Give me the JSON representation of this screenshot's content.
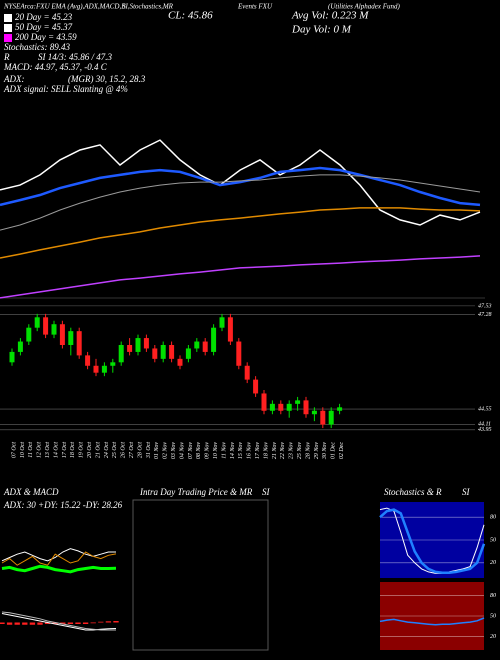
{
  "chart_data": [
    {
      "type": "line",
      "annotations": [
        "NYSEArca:FXU EMA (Avg),ADX,MACD,B",
        "SI,Stochastics,MR",
        "CL: 45.86",
        "Events FXU",
        "(Utilities Alphadex Fund)",
        "Stochastics: 89.43",
        "R",
        "SI 14/3: 45.86 / 47.3",
        "MACD: 44.97, 45.37, -0.4 C",
        "ADX:",
        "(MGR) 30, 15.2, 28.3",
        "ADX signal: SELL Slanting @ 4%",
        "Avg Vol: 0.223 M",
        "Day Vol: 0 M"
      ],
      "legend": [
        {
          "label": "20 Day = 45.23",
          "color": "#ffffff"
        },
        {
          "label": "50 Day = 45.37",
          "color": "#ffffff"
        },
        {
          "label": "200 Day = 43.59",
          "color": "#ff00ff"
        }
      ],
      "ylim": [
        42,
        49
      ],
      "series": [
        {
          "color": "#ffffff",
          "width": 1.5,
          "values": [
            44.57,
            44.68,
            44.92,
            45.27,
            45.5,
            45.62,
            45.15,
            45.5,
            45.73,
            45.27,
            44.92,
            44.68,
            45.03,
            45.27,
            44.92,
            45.15,
            45.5,
            45.15,
            44.68,
            44.1,
            43.87,
            43.75,
            43.98,
            43.87,
            44.05
          ]
        },
        {
          "color": "#1e5aff",
          "width": 2.5,
          "values": [
            44.22,
            44.33,
            44.45,
            44.61,
            44.73,
            44.85,
            44.92,
            44.99,
            45.03,
            44.99,
            44.85,
            44.68,
            44.75,
            44.85,
            44.99,
            45.03,
            45.08,
            45.03,
            44.92,
            44.8,
            44.68,
            44.52,
            44.38,
            44.26,
            44.22
          ]
        },
        {
          "color": "#9a9a9a",
          "width": 1,
          "values": [
            43.63,
            43.75,
            43.91,
            44.1,
            44.26,
            44.4,
            44.52,
            44.61,
            44.68,
            44.73,
            44.75,
            44.75,
            44.78,
            44.8,
            44.85,
            44.89,
            44.92,
            44.92,
            44.89,
            44.85,
            44.8,
            44.73,
            44.66,
            44.59,
            44.52
          ]
        },
        {
          "color": "#e08a00",
          "width": 1.5,
          "values": [
            42.98,
            43.07,
            43.17,
            43.26,
            43.35,
            43.45,
            43.52,
            43.59,
            43.68,
            43.75,
            43.82,
            43.87,
            43.91,
            43.96,
            44.01,
            44.05,
            44.1,
            44.12,
            44.15,
            44.15,
            44.15,
            44.12,
            44.1,
            44.1,
            44.08
          ]
        },
        {
          "color": "#c040ff",
          "width": 1.5,
          "values": [
            42.05,
            42.12,
            42.19,
            42.26,
            42.33,
            42.4,
            42.47,
            42.51,
            42.56,
            42.61,
            42.65,
            42.7,
            42.75,
            42.77,
            42.79,
            42.82,
            42.84,
            42.86,
            42.89,
            42.91,
            42.93,
            42.96,
            42.98,
            43.0,
            43.03
          ]
        }
      ]
    },
    {
      "type": "candlestick",
      "categories": [
        "07 Oct",
        "10 Oct",
        "11 Oct",
        "12 Oct",
        "13 Oct",
        "14 Oct",
        "17 Oct",
        "18 Oct",
        "19 Oct",
        "20 Oct",
        "21 Oct",
        "24 Oct",
        "25 Oct",
        "26 Oct",
        "27 Oct",
        "28 Oct",
        "31 Oct",
        "01 Nov",
        "02 Nov",
        "03 Nov",
        "04 Nov",
        "07 Nov",
        "08 Nov",
        "09 Nov",
        "10 Nov",
        "11 Nov",
        "14 Nov",
        "15 Nov",
        "16 Nov",
        "17 Nov",
        "18 Nov",
        "21 Nov",
        "22 Nov",
        "23 Nov",
        "25 Nov",
        "28 Nov",
        "29 Nov",
        "30 Nov",
        "01 Dec",
        "02 Dec"
      ],
      "open": [
        45.9,
        46.2,
        46.5,
        46.9,
        47.2,
        46.7,
        47.0,
        46.4,
        46.8,
        46.1,
        45.8,
        45.6,
        45.8,
        45.9,
        46.4,
        46.2,
        46.6,
        46.3,
        46.0,
        46.4,
        46.0,
        46.0,
        46.3,
        46.5,
        46.2,
        46.9,
        47.2,
        46.5,
        45.8,
        45.4,
        45.0,
        44.5,
        44.7,
        44.5,
        44.7,
        44.8,
        44.4,
        44.5,
        44.1,
        44.5
      ],
      "high": [
        46.3,
        46.6,
        47.0,
        47.3,
        47.3,
        47.1,
        47.1,
        46.9,
        46.9,
        46.2,
        46.0,
        45.9,
        46.0,
        46.5,
        46.6,
        46.7,
        46.7,
        46.4,
        46.5,
        46.5,
        46.1,
        46.4,
        46.6,
        46.6,
        47.0,
        47.3,
        47.3,
        46.6,
        45.9,
        45.5,
        45.1,
        44.8,
        44.8,
        44.8,
        44.9,
        44.9,
        44.6,
        44.6,
        44.6,
        44.7
      ],
      "low": [
        45.8,
        46.1,
        46.4,
        46.8,
        46.6,
        46.6,
        46.3,
        46.1,
        46.0,
        45.7,
        45.5,
        45.5,
        45.6,
        45.8,
        46.1,
        46.1,
        46.2,
        45.9,
        45.9,
        45.9,
        45.7,
        45.9,
        46.2,
        46.1,
        46.1,
        46.8,
        46.4,
        45.7,
        45.3,
        44.9,
        44.4,
        44.4,
        44.4,
        44.3,
        44.5,
        44.3,
        44.2,
        44.0,
        44.0,
        44.4
      ],
      "close": [
        46.2,
        46.5,
        46.9,
        47.2,
        46.7,
        47.0,
        46.4,
        46.8,
        46.1,
        45.8,
        45.6,
        45.8,
        45.9,
        46.4,
        46.2,
        46.6,
        46.3,
        46.0,
        46.4,
        46.0,
        45.8,
        46.3,
        46.5,
        46.2,
        46.9,
        47.2,
        46.5,
        45.8,
        45.4,
        45.0,
        44.5,
        44.7,
        44.5,
        44.7,
        44.8,
        44.4,
        44.5,
        44.1,
        44.5,
        44.6
      ],
      "ylim": [
        43.8,
        47.7
      ],
      "yticks": [
        47.53,
        47.28,
        44.55,
        44.11,
        43.95
      ]
    },
    {
      "type": "line",
      "title": "ADX & MACD",
      "subtitle": "ADX: 30 +DY: 15.22 -DY: 28.26",
      "ylim": [
        0,
        50
      ],
      "series": [
        {
          "color": "#ffffff",
          "width": 1,
          "values": [
            22,
            25,
            28,
            30,
            27,
            24,
            22,
            25,
            30,
            33,
            31,
            28,
            26,
            28,
            30,
            30
          ]
        },
        {
          "color": "#00ff00",
          "width": 3,
          "values": [
            15,
            16,
            14,
            13,
            15,
            17,
            16,
            14,
            13,
            12,
            14,
            15,
            16,
            15,
            15,
            15.22
          ]
        },
        {
          "color": "#e08a00",
          "width": 1,
          "values": [
            20,
            24,
            18,
            22,
            26,
            20,
            18,
            28,
            24,
            20,
            22,
            30,
            26,
            24,
            27,
            28.26
          ]
        }
      ]
    },
    {
      "type": "line",
      "ylim": [
        -1.5,
        1.5
      ],
      "series": [
        {
          "color": "#ff2020",
          "style": "bar",
          "values": [
            -0.1,
            -0.15,
            -0.15,
            -0.15,
            -0.15,
            -0.15,
            -0.1,
            -0.1,
            -0.1,
            -0.1,
            -0.1,
            -0.1,
            -0.05,
            0.05,
            0.08,
            0.1
          ]
        },
        {
          "color": "#ffffff",
          "width": 1,
          "values": [
            0.6,
            0.5,
            0.4,
            0.3,
            0.2,
            0.1,
            0,
            -0.1,
            -0.2,
            -0.3,
            -0.4,
            -0.5,
            -0.5,
            -0.45,
            -0.42,
            -0.4
          ]
        },
        {
          "color": "#bbbbbb",
          "width": 1,
          "values": [
            0.7,
            0.65,
            0.55,
            0.45,
            0.35,
            0.25,
            0.1,
            0,
            -0.1,
            -0.2,
            -0.3,
            -0.4,
            -0.45,
            -0.5,
            -0.5,
            -0.5
          ]
        }
      ]
    },
    {
      "type": "box",
      "title": "Intra Day Trading Price & MR",
      "subtitle": "SI"
    },
    {
      "type": "line",
      "title": "Stochastics & R",
      "subtitle": "SI",
      "background": "#0000a0",
      "ylim": [
        0,
        100
      ],
      "yticks": [
        80,
        50,
        20
      ],
      "series": [
        {
          "color": "#ffffff",
          "width": 1,
          "values": [
            90,
            92,
            88,
            60,
            30,
            20,
            12,
            8,
            6,
            6,
            8,
            10,
            12,
            15,
            40,
            70
          ]
        },
        {
          "color": "#2080ff",
          "width": 2.5,
          "values": [
            80,
            88,
            90,
            85,
            60,
            35,
            20,
            12,
            8,
            7,
            7,
            8,
            10,
            12,
            20,
            45
          ]
        }
      ]
    },
    {
      "type": "line",
      "background": "#8b0000",
      "ylim": [
        0,
        100
      ],
      "yticks": [
        80,
        50,
        20
      ],
      "series": [
        {
          "color": "#2080ff",
          "width": 1.5,
          "values": [
            42,
            44,
            45,
            43,
            41,
            40,
            39,
            38,
            37,
            38,
            38,
            39,
            40,
            41,
            43,
            47
          ]
        }
      ]
    }
  ]
}
